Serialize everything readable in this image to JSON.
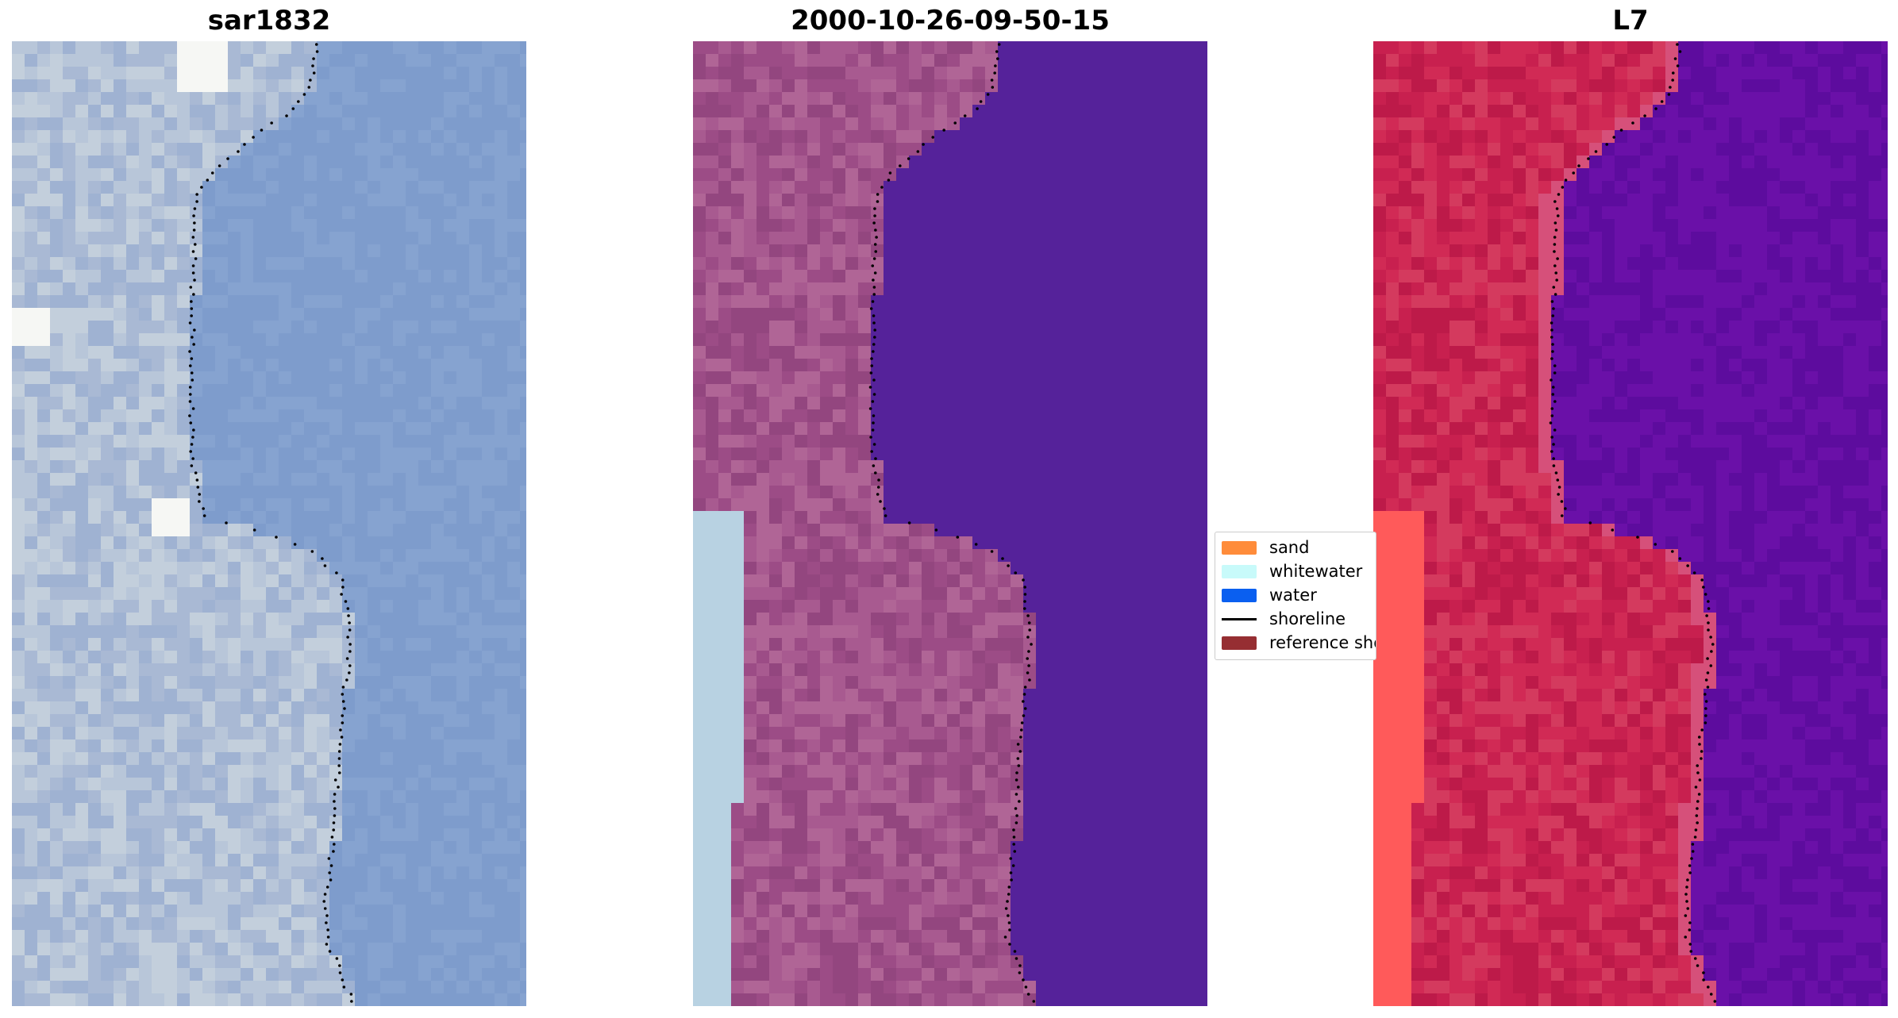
{
  "panels": [
    {
      "title": "sar1832",
      "palette": [
        "#b8c6d9",
        "#a9b9d4",
        "#c3cfdc",
        "#9fb2d2"
      ],
      "water_color": "#7e9ccc",
      "highlight": "#f6f7f4"
    },
    {
      "title": "2000-10-26-09-50-15",
      "palette": [
        "#9c4c86",
        "#a85a90",
        "#93467f",
        "#b06596"
      ],
      "water_color": "#55229a",
      "whitewater_color": "#b8d2e2"
    },
    {
      "title": "L7",
      "palette": [
        "#c8204f",
        "#d12a55",
        "#bd1a49",
        "#d43a5e"
      ],
      "water_color": "#6a10a8",
      "bright": "#ff5a5a"
    }
  ],
  "legend": {
    "items": [
      {
        "label": "sand",
        "kind": "patch",
        "color": "#ff8c3a"
      },
      {
        "label": "whitewater",
        "kind": "patch",
        "color": "#c8fafa"
      },
      {
        "label": "water",
        "kind": "patch",
        "color": "#0a5ff0"
      },
      {
        "label": "shoreline",
        "kind": "line",
        "color": "#000000"
      },
      {
        "label": "reference shoreline",
        "kind": "patch",
        "color": "#962e32"
      }
    ]
  }
}
